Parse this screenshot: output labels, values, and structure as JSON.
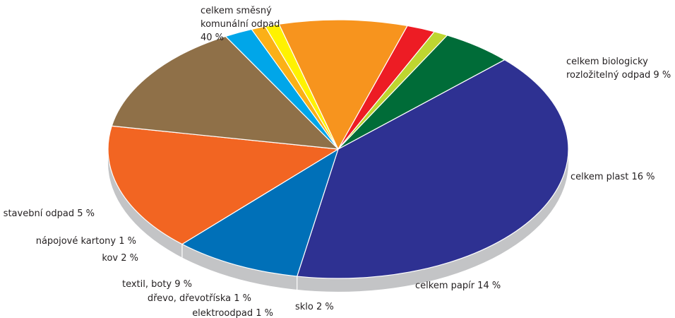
{
  "chart_data": {
    "type": "pie",
    "title": "",
    "slices": [
      {
        "label": "celkem smešný komunální odpad 40 %",
        "lines": [
          "celkem směsný",
          "komunální odpad",
          "40 %"
        ],
        "value": 40,
        "color": "#2e3192"
      },
      {
        "label": "celkem biologicky rozložitelný odpad 9 %",
        "lines": [
          "celkem biologicky",
          "rozložitelný odpad 9 %"
        ],
        "value": 9,
        "color": "#0070b8"
      },
      {
        "label": "celkem plast 16 %",
        "lines": [
          "celkem plast 16 %"
        ],
        "value": 16,
        "color": "#f26522"
      },
      {
        "label": "celkem papír 14 %",
        "lines": [
          "celkem papír 14 %"
        ],
        "value": 14,
        "color": "#8f7048"
      },
      {
        "label": "sklo 2 %",
        "lines": [
          "sklo 2 %"
        ],
        "value": 2,
        "color": "#00a6e9"
      },
      {
        "label": "elektroodpad 1 %",
        "lines": [
          "elektroodpad 1 %"
        ],
        "value": 1,
        "color": "#fbb017"
      },
      {
        "label": "dřevo, dřevotříska 1 %",
        "lines": [
          "dřevo, dřevotříska 1 %"
        ],
        "value": 1,
        "color": "#fff200"
      },
      {
        "label": "textil, boty 9 %",
        "lines": [
          "textil, boty 9 %"
        ],
        "value": 9,
        "color": "#f7941e"
      },
      {
        "label": "kov 2 %",
        "lines": [
          "kov 2 %"
        ],
        "value": 2,
        "color": "#ed1c24"
      },
      {
        "label": "nápojové kartony 1 %",
        "lines": [
          "nápojové kartony 1 %"
        ],
        "value": 1,
        "color": "#bed630"
      },
      {
        "label": "stavební odpad 5 %",
        "lines": [
          "stavební odpad 5 %"
        ],
        "value": 5,
        "color": "#006c38"
      }
    ],
    "style": "3d-tilted",
    "legend": "none"
  }
}
